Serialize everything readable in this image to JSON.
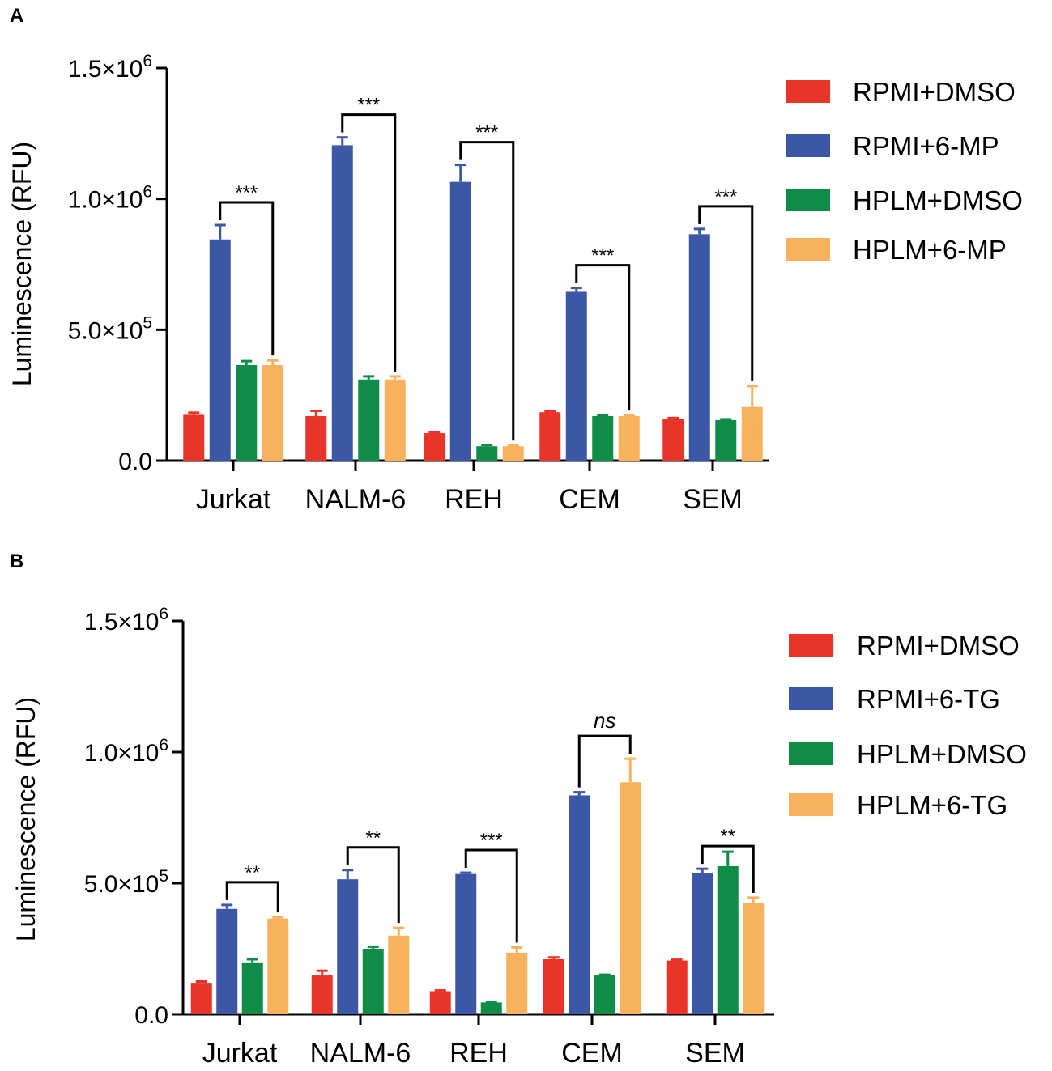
{
  "chart_data": [
    {
      "panel": "A",
      "type": "bar",
      "ylabel": "Luminescence (RFU)",
      "ylim": [
        0,
        1500000
      ],
      "yticks": [
        {
          "value": 0,
          "base": "0.0",
          "exp": ""
        },
        {
          "value": 500000,
          "base": "5.0×10",
          "exp": "5"
        },
        {
          "value": 1000000,
          "base": "1.0×10",
          "exp": "6"
        },
        {
          "value": 1500000,
          "base": "1.5×10",
          "exp": "6"
        }
      ],
      "categories": [
        "Jurkat",
        "NALM-6",
        "REH",
        "CEM",
        "SEM"
      ],
      "series": [
        {
          "name": "RPMI+DMSO",
          "color": "#e8352a",
          "values": [
            175000,
            170000,
            105000,
            185000,
            160000
          ],
          "errors": [
            8000,
            20000,
            4000,
            3000,
            3000
          ]
        },
        {
          "name": "RPMI+6-MP",
          "color": "#3d57a7",
          "values": [
            845000,
            1205000,
            1065000,
            645000,
            865000
          ],
          "errors": [
            55000,
            30000,
            65000,
            15000,
            20000
          ]
        },
        {
          "name": "HPLM+DMSO",
          "color": "#0f8c48",
          "values": [
            365000,
            310000,
            55000,
            170000,
            155000
          ],
          "errors": [
            15000,
            12000,
            5000,
            3000,
            3000
          ]
        },
        {
          "name": "HPLM+6-MP",
          "color": "#f8b15d",
          "values": [
            365000,
            310000,
            55000,
            170000,
            205000
          ],
          "errors": [
            18000,
            12000,
            3000,
            3000,
            80000
          ]
        }
      ],
      "significance": [
        {
          "category": 0,
          "from": 1,
          "to": 3,
          "label": "***"
        },
        {
          "category": 1,
          "from": 1,
          "to": 3,
          "label": "***"
        },
        {
          "category": 2,
          "from": 1,
          "to": 3,
          "label": "***"
        },
        {
          "category": 3,
          "from": 1,
          "to": 3,
          "label": "***"
        },
        {
          "category": 4,
          "from": 1,
          "to": 3,
          "label": "***"
        }
      ]
    },
    {
      "panel": "B",
      "type": "bar",
      "ylabel": "Luminescence (RFU)",
      "ylim": [
        0,
        1500000
      ],
      "yticks": [
        {
          "value": 0,
          "base": "0.0",
          "exp": ""
        },
        {
          "value": 500000,
          "base": "5.0×10",
          "exp": "5"
        },
        {
          "value": 1000000,
          "base": "1.0×10",
          "exp": "6"
        },
        {
          "value": 1500000,
          "base": "1.5×10",
          "exp": "6"
        }
      ],
      "categories": [
        "Jurkat",
        "NALM-6",
        "REH",
        "CEM",
        "SEM"
      ],
      "series": [
        {
          "name": "RPMI+DMSO",
          "color": "#e8352a",
          "values": [
            120000,
            148000,
            88000,
            210000,
            205000
          ],
          "errors": [
            5000,
            18000,
            3000,
            7000,
            3000
          ]
        },
        {
          "name": "RPMI+6-TG",
          "color": "#3d57a7",
          "values": [
            402000,
            515000,
            535000,
            835000,
            540000
          ],
          "errors": [
            15000,
            35000,
            5000,
            12000,
            15000
          ]
        },
        {
          "name": "HPLM+DMSO",
          "color": "#0f8c48",
          "values": [
            198000,
            250000,
            45000,
            148000,
            565000
          ],
          "errors": [
            12000,
            8000,
            2000,
            3000,
            55000
          ]
        },
        {
          "name": "HPLM+6-TG",
          "color": "#f8b15d",
          "values": [
            365000,
            300000,
            235000,
            885000,
            425000
          ],
          "errors": [
            5000,
            30000,
            20000,
            90000,
            20000
          ]
        }
      ],
      "significance": [
        {
          "category": 0,
          "from": 1,
          "to": 3,
          "label": "**"
        },
        {
          "category": 1,
          "from": 1,
          "to": 3,
          "label": "**"
        },
        {
          "category": 2,
          "from": 1,
          "to": 3,
          "label": "***"
        },
        {
          "category": 3,
          "from": 1,
          "to": 3,
          "label": "ns"
        },
        {
          "category": 4,
          "from": 1,
          "to": 3,
          "label": "**"
        }
      ]
    }
  ]
}
